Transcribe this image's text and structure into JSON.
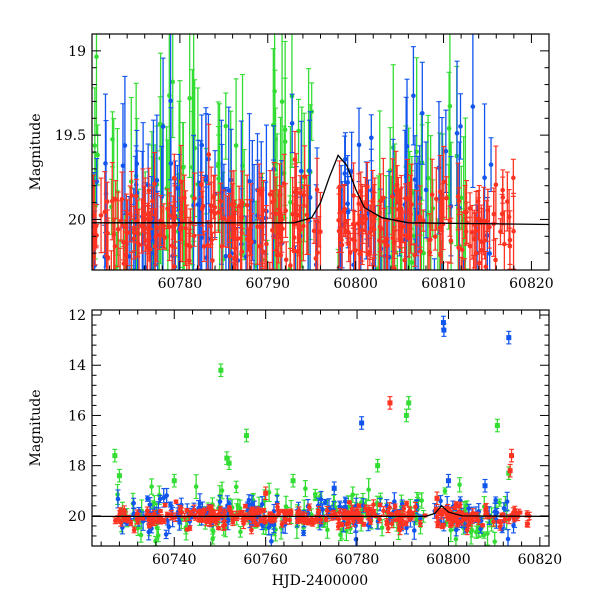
{
  "chart_data": [
    {
      "type": "scatter",
      "panel": "top",
      "title": "",
      "xlabel": "",
      "ylabel": "Magnitude",
      "xlim": [
        60770,
        60822
      ],
      "ylim": [
        20.3,
        18.9
      ],
      "y_inverted": true,
      "x_ticks": [
        "60780",
        "60790",
        "60800",
        "60810",
        "60820"
      ],
      "y_ticks": [
        "19",
        "19.5",
        "20"
      ],
      "grid": false,
      "legend": "none",
      "model_curve": {
        "color": "#000000",
        "x": [
          60770,
          60793,
          60795,
          60796,
          60797,
          60798,
          60799,
          60800,
          60801,
          60803,
          60806,
          60822
        ],
        "y": [
          20.02,
          20.02,
          19.99,
          19.9,
          19.75,
          19.62,
          19.68,
          19.82,
          19.93,
          19.99,
          20.02,
          20.03
        ]
      },
      "series": [
        {
          "color": "#33dd33",
          "seasons": [
            [
              60770,
              60795
            ],
            [
              60798,
              60813
            ]
          ],
          "mean": 20.0,
          "scatter": 0.35,
          "error": 0.4,
          "count": 140
        },
        {
          "color": "#1155ee",
          "seasons": [
            [
              60770,
              60796
            ],
            [
              60798,
              60816
            ]
          ],
          "mean": 20.02,
          "scatter": 0.28,
          "error": 0.32,
          "count": 150
        },
        {
          "color": "#ff3322",
          "seasons": [
            [
              60770,
              60796
            ],
            [
              60798,
              60818
            ]
          ],
          "mean": 20.05,
          "scatter": 0.14,
          "error": 0.15,
          "count": 330
        }
      ]
    },
    {
      "type": "scatter",
      "panel": "bottom",
      "title": "",
      "xlabel": "HJD-2400000",
      "ylabel": "Magnitude",
      "xlim": [
        60722,
        60822
      ],
      "ylim": [
        21.2,
        11.8
      ],
      "y_inverted": true,
      "x_ticks": [
        "60740",
        "60760",
        "60780",
        "60800",
        "60820"
      ],
      "y_ticks": [
        "12",
        "14",
        "16",
        "18",
        "20"
      ],
      "grid": false,
      "legend": "none",
      "model_curve": {
        "color": "#000000",
        "x": [
          60722,
          60795,
          60797,
          60798.5,
          60800,
          60803,
          60822
        ],
        "y": [
          20.02,
          20.02,
          19.9,
          19.6,
          19.85,
          20.0,
          20.02
        ]
      },
      "series": [
        {
          "color": "#33dd33",
          "seasons": [
            [
              60727,
              60795
            ],
            [
              60797,
              60813
            ]
          ],
          "mean": 19.9,
          "scatter": 0.5,
          "error": 0.3,
          "count": 170,
          "outliers": [
            [
              60750.2,
              14.2
            ],
            [
              60755.8,
              16.8
            ],
            [
              60751.5,
              17.7
            ],
            [
              60752.0,
              17.9
            ],
            [
              60791.3,
              15.5
            ],
            [
              60790.8,
              16.0
            ],
            [
              60810.7,
              16.4
            ],
            [
              60727.0,
              17.6
            ],
            [
              60728.0,
              18.4
            ],
            [
              60784.5,
              18.0
            ],
            [
              60813.2,
              18.3
            ],
            [
              60740.0,
              18.6
            ],
            [
              60766.0,
              18.6
            ]
          ]
        },
        {
          "color": "#1155ee",
          "seasons": [
            [
              60727,
              60795
            ],
            [
              60797,
              60815
            ]
          ],
          "mean": 19.95,
          "scatter": 0.4,
          "error": 0.25,
          "count": 170,
          "outliers": [
            [
              60798.9,
              12.3
            ],
            [
              60799.0,
              12.6
            ],
            [
              60813.2,
              12.9
            ],
            [
              60781.0,
              16.3
            ],
            [
              60775.0,
              18.9
            ],
            [
              60800.0,
              18.6
            ],
            [
              60808.0,
              18.8
            ]
          ]
        },
        {
          "color": "#ff3322",
          "seasons": [
            [
              60727,
              60795
            ],
            [
              60797,
              60818
            ]
          ],
          "mean": 20.02,
          "scatter": 0.2,
          "error": 0.12,
          "count": 340,
          "outliers": [
            [
              60787.2,
              15.5
            ],
            [
              60813.8,
              17.6
            ],
            [
              60813.5,
              18.2
            ],
            [
              60760.0,
              19.1
            ],
            [
              60797.5,
              19.3
            ]
          ]
        }
      ]
    }
  ]
}
